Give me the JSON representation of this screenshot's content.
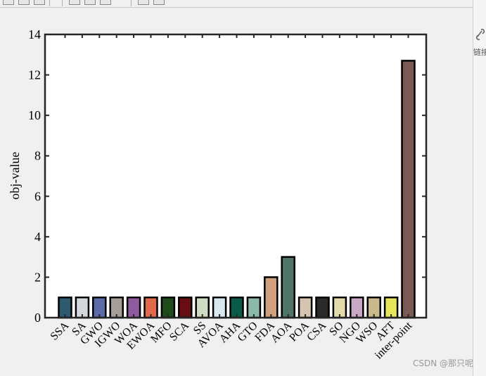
{
  "window": {
    "side_panel_label": "链接",
    "watermark": "CSDN @那只呢"
  },
  "chart_data": {
    "type": "bar",
    "title": "",
    "xlabel": "",
    "ylabel": "obj-value",
    "ylim": [
      0,
      14
    ],
    "yticks": [
      0,
      2,
      4,
      6,
      8,
      10,
      12,
      14
    ],
    "grid": false,
    "categories": [
      "SSA",
      "SA",
      "GWO",
      "IGWO",
      "WOA",
      "EWOA",
      "MFO",
      "SCA",
      "SS",
      "AVOA",
      "AHA",
      "GTO",
      "FDA",
      "AOA",
      "POA",
      "CSA",
      "SO",
      "NGO",
      "WSO",
      "AFT",
      "inter-point"
    ],
    "values": [
      1,
      1,
      1,
      1,
      1,
      1,
      1,
      1,
      1,
      1,
      1,
      1,
      2,
      3,
      1,
      1,
      1,
      1,
      1,
      1,
      12.7
    ],
    "colors": [
      "#2e5a6e",
      "#d4d8dc",
      "#5b6aa8",
      "#a59e98",
      "#8e5aa0",
      "#e2694c",
      "#1f4a1a",
      "#6a0d12",
      "#cfdcc2",
      "#d7e9ee",
      "#0a5a4a",
      "#8cb8a8",
      "#d1a07c",
      "#4e7566",
      "#d4c5b0",
      "#2a2a2a",
      "#e3dcaa",
      "#c9a8c6",
      "#c9b98c",
      "#e6e65a",
      "#7a5a52"
    ]
  }
}
